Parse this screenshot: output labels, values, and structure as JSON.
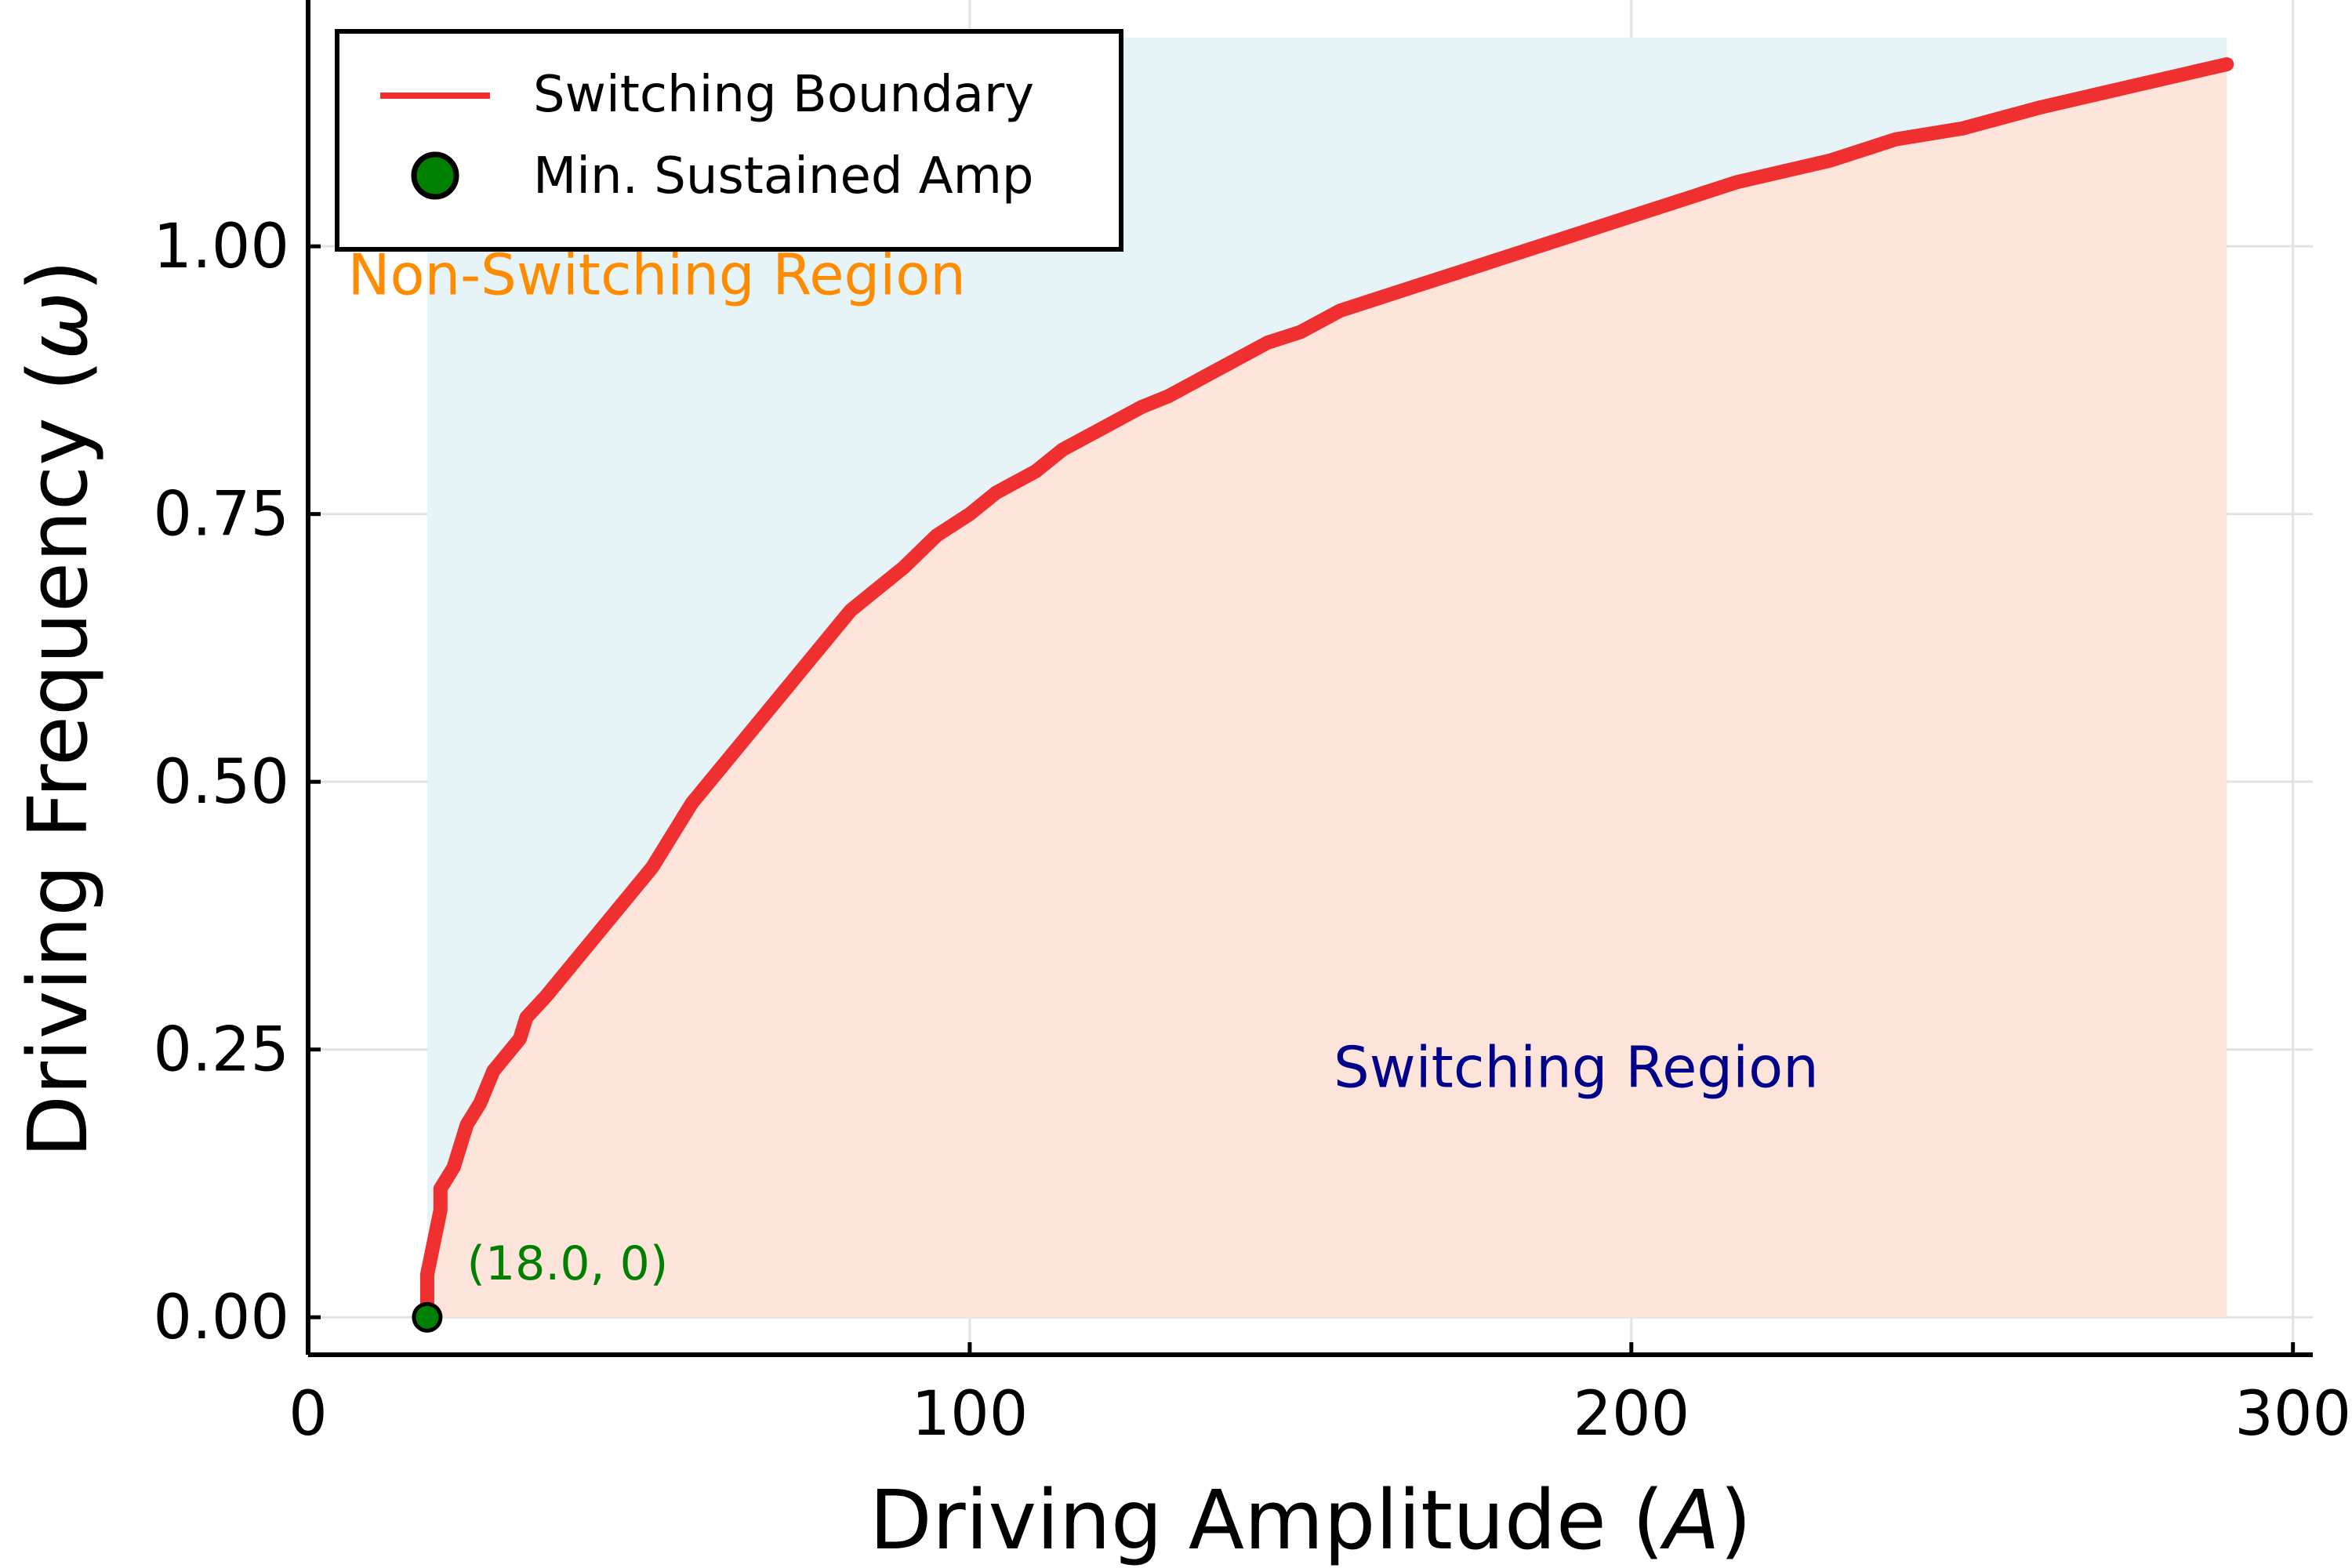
{
  "chart_data": {
    "type": "line",
    "title": "",
    "xlabel_prefix": "Driving Amplitude (",
    "xlabel_var": "A",
    "xlabel_suffix": ")",
    "ylabel_prefix": "Driving Frequency (",
    "ylabel_var": "ω",
    "ylabel_suffix": ")",
    "xlim": [
      0,
      303
    ],
    "ylim": [
      -0.035,
      1.23
    ],
    "xticks": [
      0,
      100,
      200,
      300
    ],
    "xtick_labels": [
      "0",
      "100",
      "200",
      "300"
    ],
    "yticks": [
      0,
      0.25,
      0.5,
      0.75,
      1.0
    ],
    "ytick_labels": [
      "0.00",
      "0.25",
      "0.50",
      "0.75",
      "1.00"
    ],
    "grid": true,
    "legend_position": "top-left",
    "series": [
      {
        "name": "Switching Boundary",
        "color": "#f03030",
        "x": [
          18,
          18,
          20,
          20,
          22,
          24,
          26,
          28,
          32,
          33,
          36,
          40,
          44,
          48,
          52,
          56,
          58,
          62,
          66,
          70,
          74,
          78,
          82,
          86,
          90,
          95,
          100,
          104,
          110,
          114,
          120,
          126,
          130,
          136,
          145,
          150,
          156,
          166,
          176,
          186,
          196,
          206,
          216,
          230,
          240,
          250,
          262,
          276,
          290
        ],
        "y": [
          0,
          0.04,
          0.1,
          0.12,
          0.14,
          0.18,
          0.2,
          0.23,
          0.26,
          0.28,
          0.3,
          0.33,
          0.36,
          0.39,
          0.42,
          0.46,
          0.48,
          0.51,
          0.54,
          0.57,
          0.6,
          0.63,
          0.66,
          0.68,
          0.7,
          0.73,
          0.75,
          0.77,
          0.79,
          0.81,
          0.83,
          0.85,
          0.86,
          0.88,
          0.91,
          0.92,
          0.94,
          0.96,
          0.98,
          1.0,
          1.02,
          1.04,
          1.06,
          1.08,
          1.1,
          1.11,
          1.13,
          1.15,
          1.17
        ]
      },
      {
        "name": "Min. Sustained Amp",
        "color": "#008000",
        "type": "scatter",
        "x": [
          18.0
        ],
        "y": [
          0
        ]
      }
    ],
    "regions": {
      "non_switching": {
        "label": "Non-Switching Region",
        "label_color": "#ff8c00",
        "fill": "#e6f4f7",
        "label_x": 6,
        "label_y": 0.955
      },
      "switching": {
        "label": "Switching Region",
        "label_color": "#00008b",
        "fill": "#fde4da",
        "label_x": 155,
        "label_y": 0.215
      }
    },
    "region_extent": {
      "x_min": 18,
      "x_max": 290,
      "y_max": 1.195
    },
    "annotations": [
      {
        "text": "(18.0, 0)",
        "color": "#008000",
        "x": 24,
        "y": 0.05
      }
    ]
  }
}
